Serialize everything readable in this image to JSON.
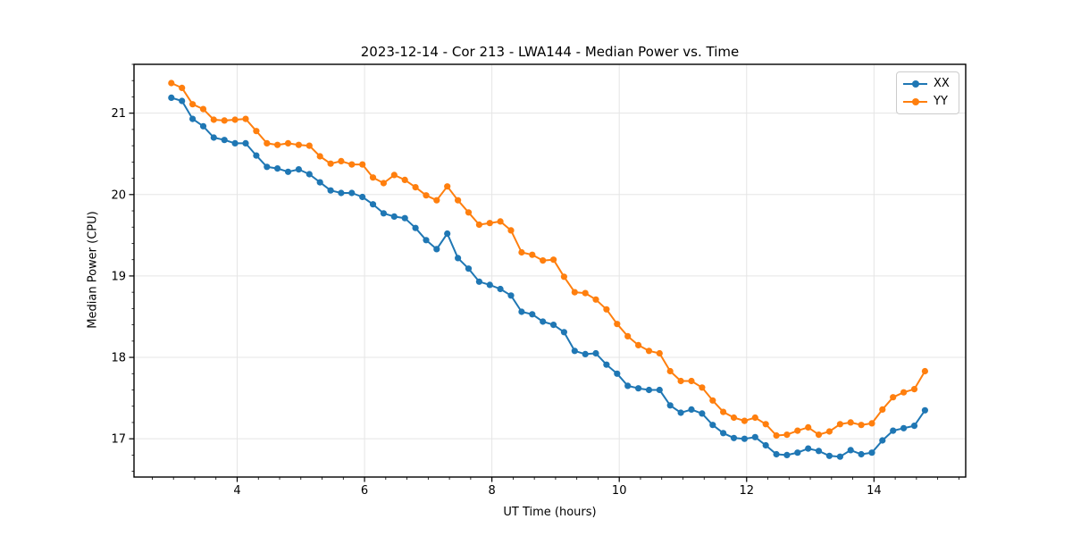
{
  "figure": {
    "title": "2023-12-14 - Cor 213 - LWA144 - Median Power vs. Time"
  },
  "chart_data": {
    "type": "line",
    "title": "2023-12-14 - Cor 213 - LWA144 - Median Power vs. Time",
    "xlabel": "UT Time (hours)",
    "ylabel": "Median Power (CPU)",
    "xlim": [
      2.38,
      15.44
    ],
    "ylim": [
      16.53,
      21.6
    ],
    "x_major_ticks": [
      4,
      6,
      8,
      10,
      12,
      14
    ],
    "y_major_ticks": [
      17,
      18,
      19,
      20,
      21
    ],
    "x_minor_step": 0.3333333,
    "y_minor_step": 0.2,
    "grid": "major",
    "legend_position": "upper right",
    "colors": {
      "grid": "#e5e5e5",
      "spine": "#000000",
      "XX": "#1f77b4",
      "YY": "#ff7f0e"
    },
    "x": [
      2.967,
      3.133,
      3.3,
      3.467,
      3.633,
      3.8,
      3.967,
      4.133,
      4.3,
      4.467,
      4.633,
      4.8,
      4.967,
      5.133,
      5.3,
      5.467,
      5.633,
      5.8,
      5.967,
      6.133,
      6.3,
      6.467,
      6.633,
      6.8,
      6.967,
      7.133,
      7.3,
      7.467,
      7.633,
      7.8,
      7.967,
      8.133,
      8.3,
      8.467,
      8.633,
      8.8,
      8.967,
      9.133,
      9.3,
      9.467,
      9.633,
      9.8,
      9.967,
      10.133,
      10.3,
      10.467,
      10.633,
      10.8,
      10.967,
      11.133,
      11.3,
      11.467,
      11.633,
      11.8,
      11.967,
      12.133,
      12.3,
      12.467,
      12.633,
      12.8,
      12.967,
      13.133,
      13.3,
      13.467,
      13.633,
      13.8,
      13.967,
      14.133,
      14.3,
      14.467,
      14.633,
      14.8
    ],
    "series": [
      {
        "name": "XX",
        "color": "#1f77b4",
        "values": [
          21.19,
          21.15,
          20.93,
          20.84,
          20.7,
          20.67,
          20.63,
          20.63,
          20.48,
          20.34,
          20.32,
          20.28,
          20.31,
          20.25,
          20.15,
          20.05,
          20.02,
          20.02,
          19.97,
          19.88,
          19.77,
          19.73,
          19.71,
          19.59,
          19.44,
          19.33,
          19.52,
          19.22,
          19.09,
          18.93,
          18.89,
          18.84,
          18.76,
          18.56,
          18.53,
          18.44,
          18.4,
          18.31,
          18.08,
          18.04,
          18.05,
          17.91,
          17.8,
          17.65,
          17.62,
          17.6,
          17.6,
          17.41,
          17.32,
          17.36,
          17.31,
          17.17,
          17.07,
          17.01,
          17.0,
          17.02,
          16.92,
          16.81,
          16.8,
          16.83,
          16.88,
          16.85,
          16.79,
          16.78,
          16.86,
          16.81,
          16.83,
          16.98,
          17.1,
          17.13,
          17.16,
          17.35
        ]
      },
      {
        "name": "YY",
        "color": "#ff7f0e",
        "values": [
          21.37,
          21.31,
          21.11,
          21.05,
          20.92,
          20.91,
          20.92,
          20.93,
          20.78,
          20.63,
          20.61,
          20.63,
          20.61,
          20.6,
          20.47,
          20.38,
          20.41,
          20.37,
          20.37,
          20.21,
          20.14,
          20.24,
          20.18,
          20.09,
          19.99,
          19.93,
          20.1,
          19.93,
          19.78,
          19.63,
          19.65,
          19.67,
          19.56,
          19.29,
          19.26,
          19.19,
          19.2,
          18.99,
          18.8,
          18.79,
          18.71,
          18.59,
          18.41,
          18.26,
          18.15,
          18.08,
          18.05,
          17.83,
          17.71,
          17.71,
          17.63,
          17.47,
          17.33,
          17.26,
          17.22,
          17.26,
          17.18,
          17.04,
          17.05,
          17.1,
          17.14,
          17.05,
          17.09,
          17.18,
          17.2,
          17.17,
          17.19,
          17.36,
          17.51,
          17.57,
          17.61,
          17.83
        ]
      }
    ]
  }
}
